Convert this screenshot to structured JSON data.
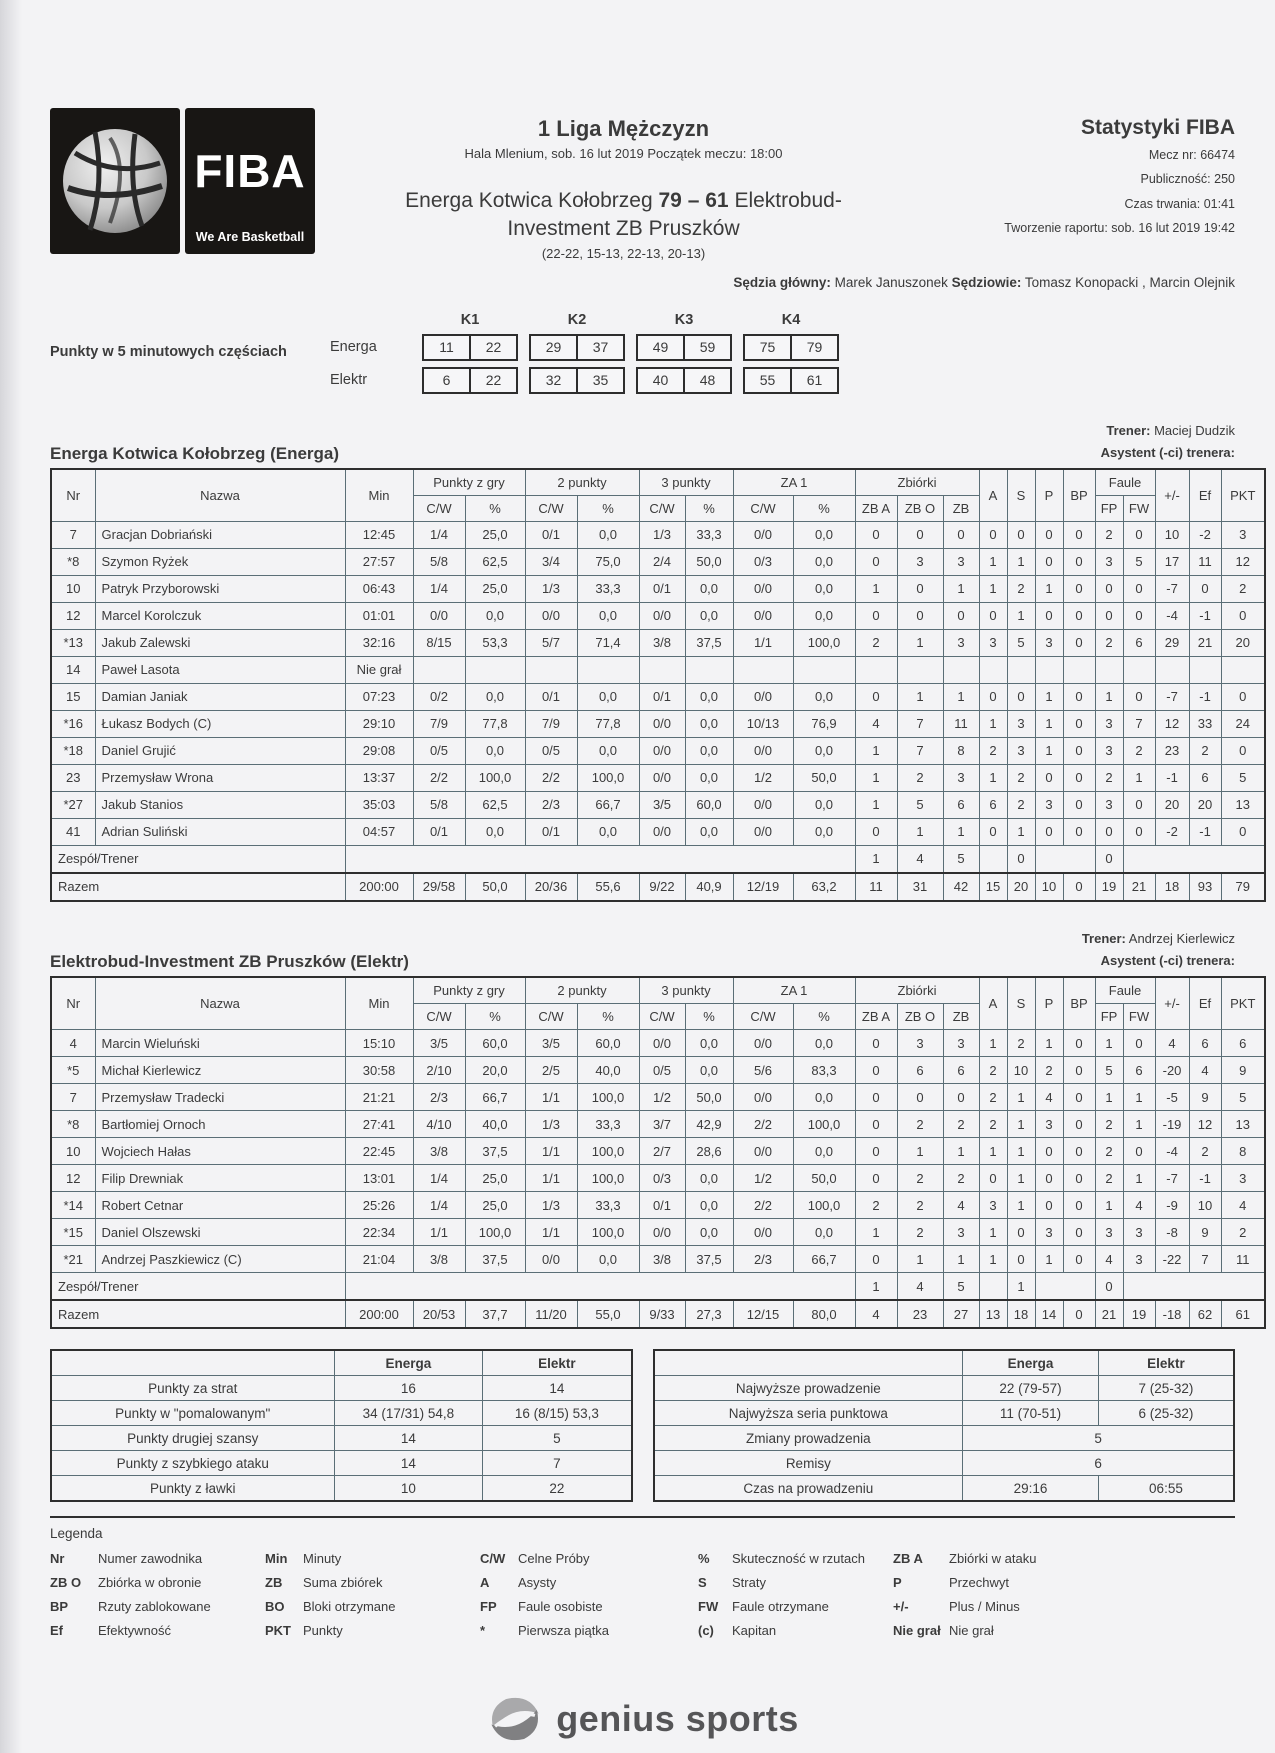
{
  "header": {
    "fiba": {
      "acronym": "FIBA",
      "tagline": "We Are Basketball"
    },
    "league_title": "1 Liga Mężczyzn",
    "venue_line": "Hala Mlenium, sob. 16 lut 2019 Początek meczu: 18:00",
    "home_team": "Energa Kotwica Kołobrzeg",
    "home_score": "79",
    "score_separator": "–",
    "away_score": "61",
    "away_team_part1": "Elektrobud-",
    "away_team_part2": "Investment ZB Pruszków",
    "quarter_breakdown": "(22-22, 15-13, 22-13, 20-13)",
    "report_title": "Statystyki FIBA",
    "meta_lines": [
      "Mecz nr: 66474",
      "Publiczność: 250",
      "Czas trwania: 01:41",
      "Tworzenie raportu: sob. 16 lut 2019 19:42"
    ],
    "officials": [
      {
        "label": "Sędzia główny:",
        "value": " Marek Januszonek "
      },
      {
        "label": "Sędziowie:",
        "value": " Tomasz Konopacki , Marcin Olejnik"
      }
    ]
  },
  "quarters": {
    "section_label": "Punkty w 5 minutowych częściach",
    "period_labels": [
      "K1",
      "K2",
      "K3",
      "K4"
    ],
    "rows": [
      {
        "team": "Energa",
        "pairs": [
          [
            "11",
            "22"
          ],
          [
            "29",
            "37"
          ],
          [
            "49",
            "59"
          ],
          [
            "75",
            "79"
          ]
        ]
      },
      {
        "team": "Elektr",
        "pairs": [
          [
            "6",
            "22"
          ],
          [
            "32",
            "35"
          ],
          [
            "40",
            "48"
          ],
          [
            "55",
            "61"
          ]
        ]
      }
    ]
  },
  "stat_columns": {
    "row1": [
      {
        "t": "Nr",
        "rs": 2
      },
      {
        "t": "Nazwa",
        "rs": 2
      },
      {
        "t": "Min",
        "rs": 2
      },
      {
        "t": "Punkty z gry",
        "cs": 2
      },
      {
        "t": "2 punkty",
        "cs": 2
      },
      {
        "t": "3 punkty",
        "cs": 2
      },
      {
        "t": "ZA 1",
        "cs": 2
      },
      {
        "t": "Zbiórki",
        "cs": 3
      },
      {
        "t": "A",
        "rs": 2
      },
      {
        "t": "S",
        "rs": 2
      },
      {
        "t": "P",
        "rs": 2
      },
      {
        "t": "BP",
        "rs": 2
      },
      {
        "t": "Faule",
        "cs": 2
      },
      {
        "t": "+/-",
        "rs": 2
      },
      {
        "t": "Ef",
        "rs": 2
      },
      {
        "t": "PKT",
        "rs": 2
      }
    ],
    "row2": [
      "C/W",
      "%",
      "C/W",
      "%",
      "C/W",
      "%",
      "C/W",
      "%",
      "ZB A",
      "ZB O",
      "ZB",
      "FP",
      "FW"
    ]
  },
  "teams": [
    {
      "name": "Energa Kotwica Kołobrzeg (Energa)",
      "coach_label": "Trener:",
      "coach": " Maciej Dudzik",
      "assistants_label": "Asystent (-ci) trenera:",
      "players": [
        [
          "7",
          "Gracjan Dobriański",
          "12:45",
          "1/4",
          "25,0",
          "0/1",
          "0,0",
          "1/3",
          "33,3",
          "0/0",
          "0,0",
          "0",
          "0",
          "0",
          "0",
          "0",
          "0",
          "0",
          "2",
          "0",
          "10",
          "-2",
          "3"
        ],
        [
          "*8",
          "Szymon Ryżek",
          "27:57",
          "5/8",
          "62,5",
          "3/4",
          "75,0",
          "2/4",
          "50,0",
          "0/3",
          "0,0",
          "0",
          "3",
          "3",
          "1",
          "1",
          "0",
          "0",
          "3",
          "5",
          "17",
          "11",
          "12"
        ],
        [
          "10",
          "Patryk Przyborowski",
          "06:43",
          "1/4",
          "25,0",
          "1/3",
          "33,3",
          "0/1",
          "0,0",
          "0/0",
          "0,0",
          "1",
          "0",
          "1",
          "1",
          "2",
          "1",
          "0",
          "0",
          "0",
          "-7",
          "0",
          "2"
        ],
        [
          "12",
          "Marcel Korolczuk",
          "01:01",
          "0/0",
          "0,0",
          "0/0",
          "0,0",
          "0/0",
          "0,0",
          "0/0",
          "0,0",
          "0",
          "0",
          "0",
          "0",
          "1",
          "0",
          "0",
          "0",
          "0",
          "-4",
          "-1",
          "0"
        ],
        [
          "*13",
          "Jakub Zalewski",
          "32:16",
          "8/15",
          "53,3",
          "5/7",
          "71,4",
          "3/8",
          "37,5",
          "1/1",
          "100,0",
          "2",
          "1",
          "3",
          "3",
          "5",
          "3",
          "0",
          "2",
          "6",
          "29",
          "21",
          "20"
        ],
        [
          "14",
          "Paweł Lasota",
          "Nie grał",
          "",
          "",
          "",
          "",
          "",
          "",
          "",
          "",
          "",
          "",
          "",
          "",
          "",
          "",
          "",
          "",
          "",
          "",
          "",
          ""
        ],
        [
          "15",
          "Damian Janiak",
          "07:23",
          "0/2",
          "0,0",
          "0/1",
          "0,0",
          "0/1",
          "0,0",
          "0/0",
          "0,0",
          "0",
          "1",
          "1",
          "0",
          "0",
          "1",
          "0",
          "1",
          "0",
          "-7",
          "-1",
          "0"
        ],
        [
          "*16",
          "Łukasz Bodych (C)",
          "29:10",
          "7/9",
          "77,8",
          "7/9",
          "77,8",
          "0/0",
          "0,0",
          "10/13",
          "76,9",
          "4",
          "7",
          "11",
          "1",
          "3",
          "1",
          "0",
          "3",
          "7",
          "12",
          "33",
          "24"
        ],
        [
          "*18",
          "Daniel Grujić",
          "29:08",
          "0/5",
          "0,0",
          "0/5",
          "0,0",
          "0/0",
          "0,0",
          "0/0",
          "0,0",
          "1",
          "7",
          "8",
          "2",
          "3",
          "1",
          "0",
          "3",
          "2",
          "23",
          "2",
          "0"
        ],
        [
          "23",
          "Przemysław Wrona",
          "13:37",
          "2/2",
          "100,0",
          "2/2",
          "100,0",
          "0/0",
          "0,0",
          "1/2",
          "50,0",
          "1",
          "2",
          "3",
          "1",
          "2",
          "0",
          "0",
          "2",
          "1",
          "-1",
          "6",
          "5"
        ],
        [
          "*27",
          "Jakub Stanios",
          "35:03",
          "5/8",
          "62,5",
          "2/3",
          "66,7",
          "3/5",
          "60,0",
          "0/0",
          "0,0",
          "1",
          "5",
          "6",
          "6",
          "2",
          "3",
          "0",
          "3",
          "0",
          "20",
          "20",
          "13"
        ],
        [
          "41",
          "Adrian Suliński",
          "04:57",
          "0/1",
          "0,0",
          "0/1",
          "0,0",
          "0/0",
          "0,0",
          "0/0",
          "0,0",
          "0",
          "1",
          "1",
          "0",
          "1",
          "0",
          "0",
          "0",
          "0",
          "-2",
          "-1",
          "0"
        ]
      ],
      "team_row": {
        "label": "Zespół/Trener",
        "zba": "1",
        "zbo": "4",
        "zb": "5",
        "a": "",
        "s": "0",
        "fp": "0"
      },
      "totals": {
        "label": "Razem",
        "cells": [
          "200:00",
          "29/58",
          "50,0",
          "20/36",
          "55,6",
          "9/22",
          "40,9",
          "12/19",
          "63,2",
          "11",
          "31",
          "42",
          "15",
          "20",
          "10",
          "0",
          "19",
          "21",
          "18",
          "93",
          "79"
        ]
      }
    },
    {
      "name": "Elektrobud-Investment ZB Pruszków (Elektr)",
      "coach_label": "Trener:",
      "coach": " Andrzej Kierlewicz",
      "assistants_label": "Asystent (-ci) trenera:",
      "players": [
        [
          "4",
          "Marcin Wieluński",
          "15:10",
          "3/5",
          "60,0",
          "3/5",
          "60,0",
          "0/0",
          "0,0",
          "0/0",
          "0,0",
          "0",
          "3",
          "3",
          "1",
          "2",
          "1",
          "0",
          "1",
          "0",
          "4",
          "6",
          "6"
        ],
        [
          "*5",
          "Michał Kierlewicz",
          "30:58",
          "2/10",
          "20,0",
          "2/5",
          "40,0",
          "0/5",
          "0,0",
          "5/6",
          "83,3",
          "0",
          "6",
          "6",
          "2",
          "10",
          "2",
          "0",
          "5",
          "6",
          "-20",
          "4",
          "9"
        ],
        [
          "7",
          "Przemysław Tradecki",
          "21:21",
          "2/3",
          "66,7",
          "1/1",
          "100,0",
          "1/2",
          "50,0",
          "0/0",
          "0,0",
          "0",
          "0",
          "0",
          "2",
          "1",
          "4",
          "0",
          "1",
          "1",
          "-5",
          "9",
          "5"
        ],
        [
          "*8",
          "Bartłomiej Ornoch",
          "27:41",
          "4/10",
          "40,0",
          "1/3",
          "33,3",
          "3/7",
          "42,9",
          "2/2",
          "100,0",
          "0",
          "2",
          "2",
          "2",
          "1",
          "3",
          "0",
          "2",
          "1",
          "-19",
          "12",
          "13"
        ],
        [
          "10",
          "Wojciech Hałas",
          "22:45",
          "3/8",
          "37,5",
          "1/1",
          "100,0",
          "2/7",
          "28,6",
          "0/0",
          "0,0",
          "0",
          "1",
          "1",
          "1",
          "1",
          "0",
          "0",
          "2",
          "0",
          "-4",
          "2",
          "8"
        ],
        [
          "12",
          "Filip Drewniak",
          "13:01",
          "1/4",
          "25,0",
          "1/1",
          "100,0",
          "0/3",
          "0,0",
          "1/2",
          "50,0",
          "0",
          "2",
          "2",
          "0",
          "1",
          "0",
          "0",
          "2",
          "1",
          "-7",
          "-1",
          "3"
        ],
        [
          "*14",
          "Robert Cetnar",
          "25:26",
          "1/4",
          "25,0",
          "1/3",
          "33,3",
          "0/1",
          "0,0",
          "2/2",
          "100,0",
          "2",
          "2",
          "4",
          "3",
          "1",
          "0",
          "0",
          "1",
          "4",
          "-9",
          "10",
          "4"
        ],
        [
          "*15",
          "Daniel Olszewski",
          "22:34",
          "1/1",
          "100,0",
          "1/1",
          "100,0",
          "0/0",
          "0,0",
          "0/0",
          "0,0",
          "1",
          "2",
          "3",
          "1",
          "0",
          "3",
          "0",
          "3",
          "3",
          "-8",
          "9",
          "2"
        ],
        [
          "*21",
          "Andrzej Paszkiewicz (C)",
          "21:04",
          "3/8",
          "37,5",
          "0/0",
          "0,0",
          "3/8",
          "37,5",
          "2/3",
          "66,7",
          "0",
          "1",
          "1",
          "1",
          "0",
          "1",
          "0",
          "4",
          "3",
          "-22",
          "7",
          "11"
        ]
      ],
      "team_row": {
        "label": "Zespół/Trener",
        "zba": "1",
        "zbo": "4",
        "zb": "5",
        "a": "",
        "s": "1",
        "fp": "0"
      },
      "totals": {
        "label": "Razem",
        "cells": [
          "200:00",
          "20/53",
          "37,7",
          "11/20",
          "55,0",
          "9/33",
          "27,3",
          "12/15",
          "80,0",
          "4",
          "23",
          "27",
          "13",
          "18",
          "14",
          "0",
          "21",
          "19",
          "-18",
          "62",
          "61"
        ]
      }
    }
  ],
  "summaries": [
    {
      "header": [
        "Energa",
        "Elektr"
      ],
      "rows": [
        {
          "label": "Punkty za strat",
          "energa": "16",
          "elektr": "14"
        },
        {
          "label": "Punkty w \"pomalowanym\"",
          "energa": "34 (17/31) 54,8",
          "elektr": "16 (8/15) 53,3"
        },
        {
          "label": "Punkty drugiej szansy",
          "energa": "14",
          "elektr": "5"
        },
        {
          "label": "Punkty z szybkiego ataku",
          "energa": "14",
          "elektr": "7"
        },
        {
          "label": "Punkty z ławki",
          "energa": "10",
          "elektr": "22"
        }
      ]
    },
    {
      "header": [
        "Energa",
        "Elektr"
      ],
      "rows": [
        {
          "label": "Najwyższe prowadzenie",
          "energa": "22 (79-57)",
          "elektr": "7 (25-32)"
        },
        {
          "label": "Najwyższa seria punktowa",
          "energa": "11 (70-51)",
          "elektr": "6 (25-32)"
        },
        {
          "label": "Zmiany prowadzenia",
          "span": "5"
        },
        {
          "label": "Remisy",
          "span": "6"
        },
        {
          "label": "Czas na prowadzeniu",
          "energa": "29:16",
          "elektr": "06:55"
        }
      ]
    }
  ],
  "legend": {
    "title": "Legenda",
    "rows": [
      [
        [
          "Nr",
          "Numer zawodnika"
        ],
        [
          "Min",
          "Minuty"
        ],
        [
          "C/W",
          "Celne Próby"
        ],
        [
          "%",
          "Skuteczność w rzutach"
        ],
        [
          "ZB A",
          "Zbiórki w ataku"
        ]
      ],
      [
        [
          "ZB O",
          "Zbiórka w obronie"
        ],
        [
          "ZB",
          "Suma zbiórek"
        ],
        [
          "A",
          "Asysty"
        ],
        [
          "S",
          "Straty"
        ],
        [
          "P",
          "Przechwyt"
        ]
      ],
      [
        [
          "BP",
          "Rzuty zablokowane"
        ],
        [
          "BO",
          "Bloki otrzymane"
        ],
        [
          "FP",
          "Faule osobiste"
        ],
        [
          "FW",
          "Faule otrzymane"
        ],
        [
          "+/-",
          "Plus / Minus"
        ]
      ],
      [
        [
          "Ef",
          "Efektywność"
        ],
        [
          "PKT",
          "Punkty"
        ],
        [
          "*",
          "Pierwsza piątka"
        ],
        [
          "(c)",
          "Kapitan"
        ],
        [
          "Nie grał",
          "Nie grał"
        ]
      ]
    ]
  },
  "footer": {
    "brand": "genius sports"
  }
}
